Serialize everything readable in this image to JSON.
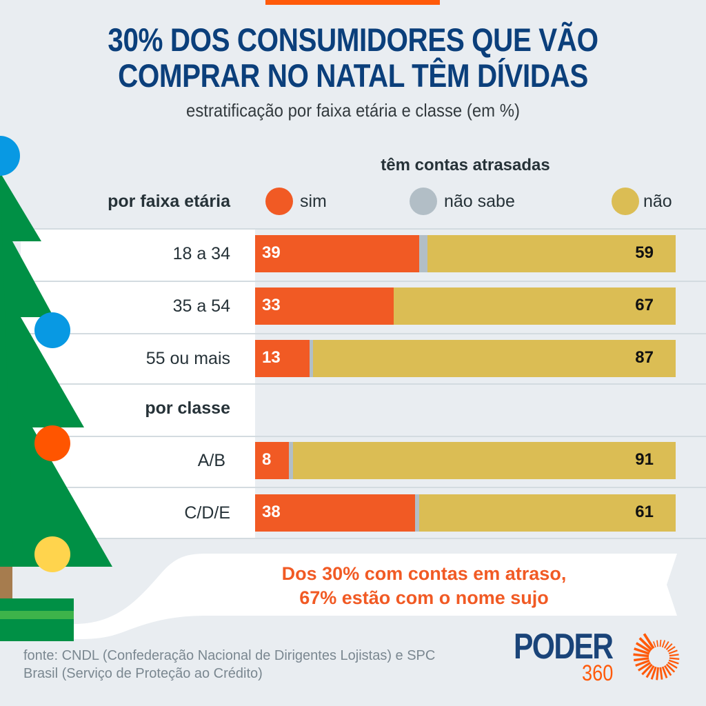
{
  "header": {
    "title_line1": "30% DOS CONSUMIDORES QUE VÃO",
    "title_line2": "COMPRAR NO NATAL TÊM DÍVIDAS",
    "subtitle": "estratificação por faixa etária e classe (em %)"
  },
  "colors": {
    "accent": "#ff5a0a",
    "title": "#0b3f7b",
    "sim": "#f15a24",
    "nao_sabe": "#b2bec6",
    "nao": "#dbbd54",
    "tree": "#009045",
    "background": "#e9edf1"
  },
  "chart_data": {
    "type": "bar",
    "stacked": true,
    "orientation": "horizontal",
    "title": "30% DOS CONSUMIDORES QUE VÃO COMPRAR NO NATAL TÊM DÍVIDAS",
    "subtitle": "estratificação por faixa etária e classe (em %)",
    "legend_title": "têm contas atrasadas",
    "legend_position": "top",
    "xlim": [
      0,
      100
    ],
    "groups": [
      {
        "label": "por faixa etária",
        "categories": [
          "18 a 34",
          "35 a 54",
          "55 ou mais"
        ]
      },
      {
        "label": "por classe",
        "categories": [
          "A/B",
          "C/D/E"
        ]
      }
    ],
    "categories": [
      "18 a 34",
      "35 a 54",
      "55 ou mais",
      "A/B",
      "C/D/E"
    ],
    "series": [
      {
        "name": "sim",
        "values": [
          39,
          33,
          13,
          8,
          38
        ]
      },
      {
        "name": "não sabe",
        "values": [
          2,
          0,
          0.5,
          1,
          1
        ]
      },
      {
        "name": "não",
        "values": [
          59,
          67,
          87,
          91,
          61
        ]
      }
    ]
  },
  "legend": {
    "title": "têm contas atrasadas",
    "items": [
      {
        "label": "sim"
      },
      {
        "label": "não sabe"
      },
      {
        "label": "não"
      }
    ]
  },
  "sections": {
    "age": "por faixa etária",
    "class": "por classe"
  },
  "callout": {
    "line1": "Dos 30% com contas em atraso,",
    "line2": "67% estão com o nome sujo"
  },
  "source": {
    "line1": "fonte: CNDL (Confederação Nacional de Dirigentes Lojistas) e SPC",
    "line2": "Brasil (Serviço de Proteção ao Crédito)"
  },
  "logo": {
    "word": "PODER",
    "number": "360"
  }
}
